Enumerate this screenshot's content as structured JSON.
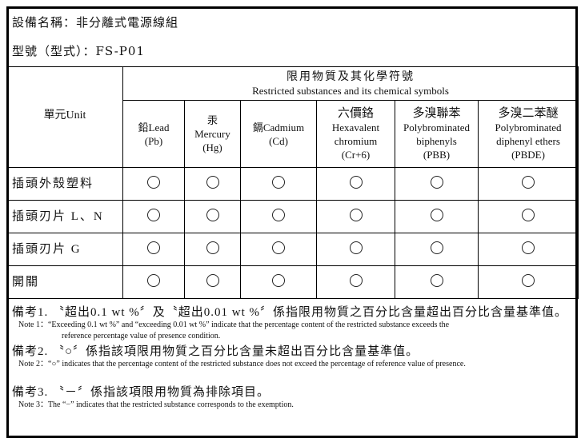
{
  "title": {
    "equipment": "設備名稱：非分離式電源線組",
    "model": "型號（型式）：FS-P01"
  },
  "header": {
    "unit": "單元Unit",
    "group_cn": "限用物質及其化學符號",
    "group_en": "Restricted substances and its chemical symbols",
    "columns": [
      {
        "l1": "鉛Lead",
        "l2": "(Pb)",
        "l3": ""
      },
      {
        "l1": "汞",
        "l2": "Mercury",
        "l3": "(Hg)"
      },
      {
        "l1": "鎘Cadmium",
        "l2": "(Cd)",
        "l3": ""
      },
      {
        "l1": "六價鉻",
        "l2": "Hexavalent",
        "l3": "chromium",
        "l4": "(Cr+6)"
      },
      {
        "l1": "多溴聯苯",
        "l2": "Polybrominated",
        "l3": "biphenyls",
        "l4": "(PBB)"
      },
      {
        "l1": "多溴二苯醚",
        "l2": "Polybrominated",
        "l3": "diphenyl ethers",
        "l4": "(PBDE)"
      }
    ]
  },
  "rows": [
    {
      "unit": "插頭外殼塑料",
      "marks": [
        "○",
        "○",
        "○",
        "○",
        "○",
        "○"
      ]
    },
    {
      "unit": "插頭刃片 L、N",
      "marks": [
        "○",
        "○",
        "○",
        "○",
        "○",
        "○"
      ]
    },
    {
      "unit": "插頭刃片 G",
      "marks": [
        "○",
        "○",
        "○",
        "○",
        "○",
        "○"
      ]
    },
    {
      "unit": "開關",
      "marks": [
        "○",
        "○",
        "○",
        "○",
        "○",
        "○"
      ]
    }
  ],
  "notes": [
    {
      "cn": "備考1. 〝超出0.1 wt %〞及〝超出0.01 wt %〞係指限用物質之百分比含量超出百分比含量基準值。",
      "en": "Note 1：“Exceeding 0.1 wt %” and “exceeding 0.01 wt %” indicate that the percentage content of the restricted substance exceeds the",
      "en2": "reference percentage value of presence condition."
    },
    {
      "cn": "備考2. 〝○〞係指該項限用物質之百分比含量未超出百分比含量基準值。",
      "en": "Note 2：“○” indicates that the percentage content of the restricted substance does not exceed the percentage of reference value of presence."
    },
    {
      "cn": "備考3. 〝－〞係指該項限用物質為排除項目。",
      "en": "Note 3：The “−” indicates that the restricted substance corresponds to the exemption."
    }
  ]
}
